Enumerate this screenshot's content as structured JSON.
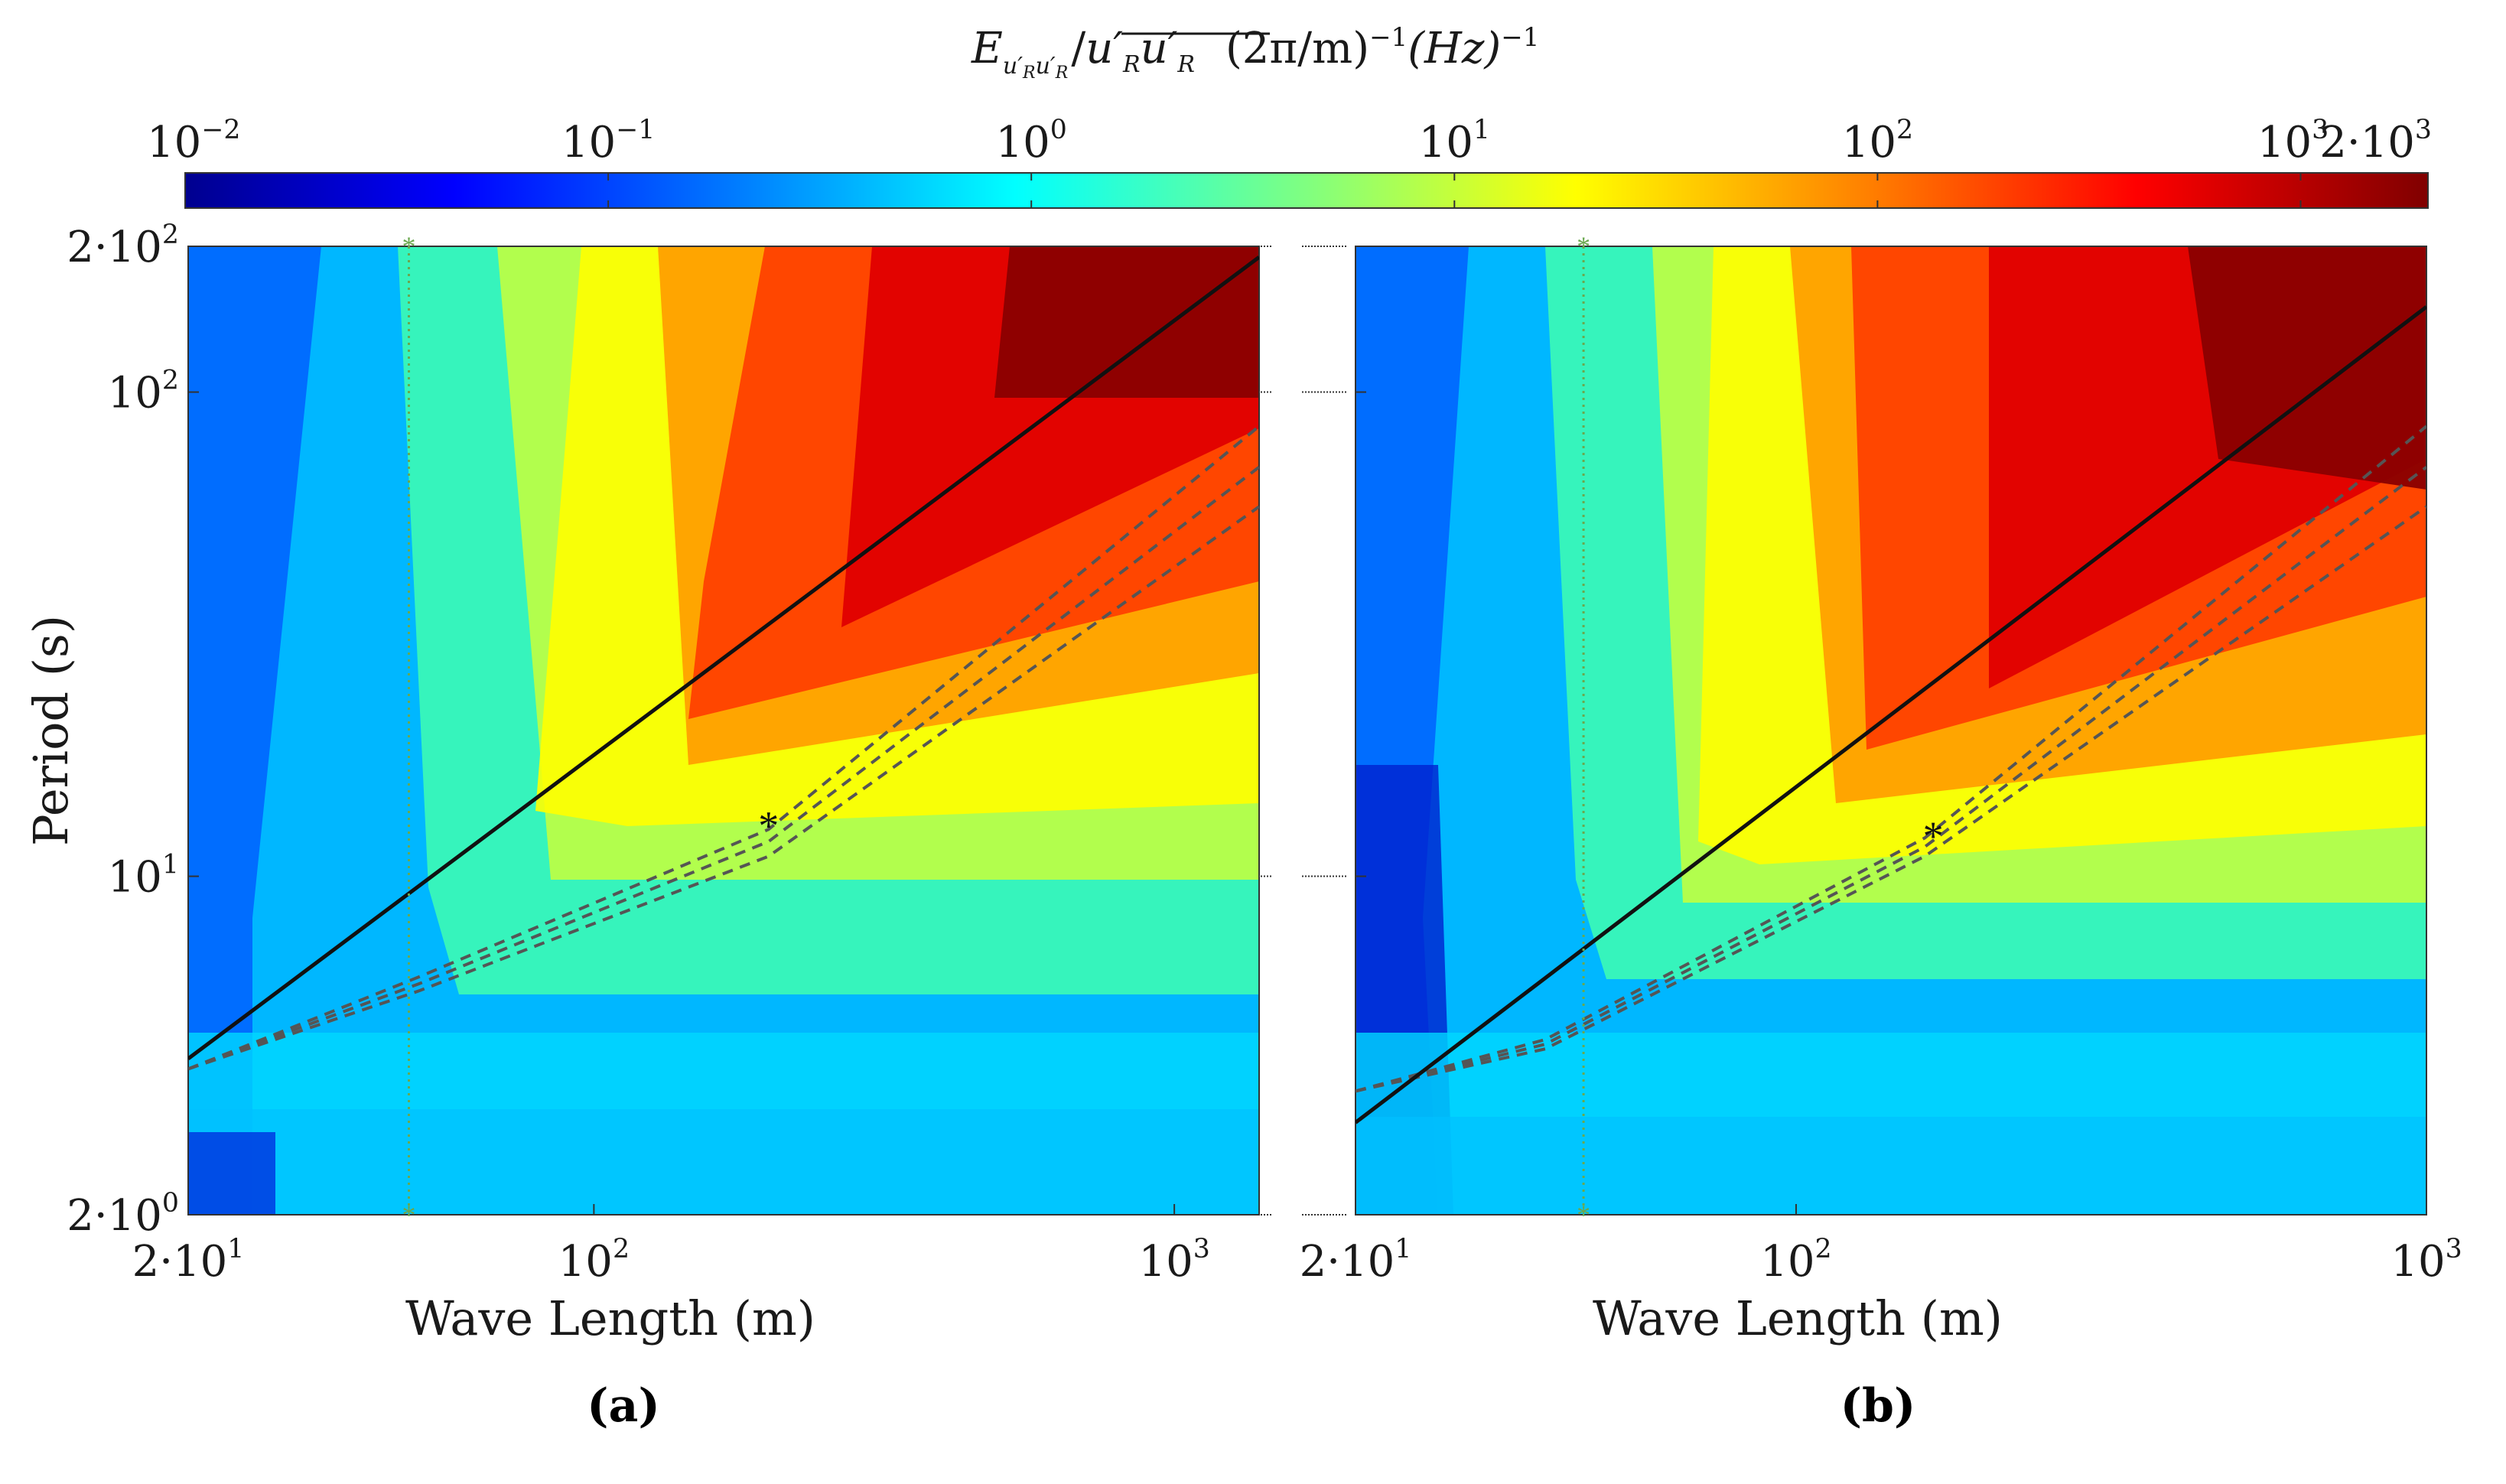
{
  "colorbar": {
    "title_main": "E",
    "title_sub": "u′",
    "title_subsub": "R",
    "title_sub2": "u′",
    "title_subsub2": "R",
    "title_over": "u′",
    "title_over_sub": "R",
    "title_over2": "u′",
    "title_over2_sub": "R",
    "title_units": "(2π/m)",
    "title_units_exp": "−1",
    "title_units2": "(Hz)",
    "title_units2_exp": "−1",
    "scale": "log",
    "range": [
      0.01,
      2000
    ],
    "ticks": [
      {
        "base": "10",
        "exp": "−2",
        "value": 0.01
      },
      {
        "base": "10",
        "exp": "−1",
        "value": 0.1
      },
      {
        "base": "10",
        "exp": "0",
        "value": 1
      },
      {
        "base": "10",
        "exp": "1",
        "value": 10
      },
      {
        "base": "10",
        "exp": "2",
        "value": 100
      },
      {
        "base": "10",
        "exp": "3",
        "value": 1000
      },
      {
        "base": "2·10",
        "exp": "3",
        "value": 2000
      }
    ],
    "colormap": [
      "#00008f",
      "#0000ff",
      "#0080ff",
      "#00ffff",
      "#80ff80",
      "#ffff00",
      "#ff8000",
      "#ff0000",
      "#800000"
    ]
  },
  "chart_data": [
    {
      "type": "heatmap",
      "panel_label": "(a)",
      "xlabel": "Wave Length (m)",
      "ylabel": "Period (s)",
      "xscale": "log",
      "yscale": "log",
      "xlim": [
        20,
        1400
      ],
      "ylim": [
        2,
        200
      ],
      "x_ticks": [
        {
          "base": "2·10",
          "exp": "1",
          "value": 20
        },
        {
          "base": "10",
          "exp": "2",
          "value": 100
        },
        {
          "base": "10",
          "exp": "3",
          "value": 1000
        }
      ],
      "y_ticks": [
        {
          "base": "2·10",
          "exp": "0",
          "value": 2
        },
        {
          "base": "10",
          "exp": "1",
          "value": 10
        },
        {
          "base": "10",
          "exp": "2",
          "value": 100
        },
        {
          "base": "2·10",
          "exp": "2",
          "value": 200
        }
      ],
      "solid_line": [
        [
          20,
          4.2
        ],
        [
          1400,
          190
        ]
      ],
      "dashed_lines": [
        [
          [
            20,
            4.0
          ],
          [
            50,
            6.2
          ],
          [
            200,
            12.5
          ],
          [
            1400,
            85
          ]
        ],
        [
          [
            20,
            4.0
          ],
          [
            50,
            6.0
          ],
          [
            200,
            11.8
          ],
          [
            1400,
            70
          ]
        ],
        [
          [
            20,
            4.0
          ],
          [
            50,
            5.8
          ],
          [
            200,
            11.0
          ],
          [
            1400,
            58
          ]
        ]
      ],
      "vertical_marker_x": 48,
      "star_marker": [
        200,
        12.8
      ]
    },
    {
      "type": "heatmap",
      "panel_label": "(b)",
      "xlabel": "Wave Length (m)",
      "ylabel": "Period (s)",
      "xscale": "log",
      "yscale": "log",
      "xlim": [
        20,
        1000
      ],
      "ylim": [
        2,
        200
      ],
      "x_ticks": [
        {
          "base": "2·10",
          "exp": "1",
          "value": 20
        },
        {
          "base": "10",
          "exp": "2",
          "value": 100
        },
        {
          "base": "10",
          "exp": "3",
          "value": 1000
        }
      ],
      "y_ticks": [
        {
          "base": "2·10",
          "exp": "0",
          "value": 2
        },
        {
          "base": "10",
          "exp": "1",
          "value": 10
        },
        {
          "base": "10",
          "exp": "2",
          "value": 100
        },
        {
          "base": "2·10",
          "exp": "2",
          "value": 200
        }
      ],
      "solid_line": [
        [
          20,
          3.1
        ],
        [
          1000,
          150
        ]
      ],
      "dashed_lines": [
        [
          [
            20,
            3.6
          ],
          [
            40,
            4.6
          ],
          [
            160,
            12.0
          ],
          [
            1000,
            85
          ]
        ],
        [
          [
            20,
            3.6
          ],
          [
            40,
            4.5
          ],
          [
            160,
            11.5
          ],
          [
            1000,
            70
          ]
        ],
        [
          [
            20,
            3.6
          ],
          [
            40,
            4.4
          ],
          [
            160,
            11.0
          ],
          [
            1000,
            58
          ]
        ]
      ],
      "vertical_marker_x": 46,
      "star_marker": [
        165,
        12.2
      ]
    }
  ]
}
